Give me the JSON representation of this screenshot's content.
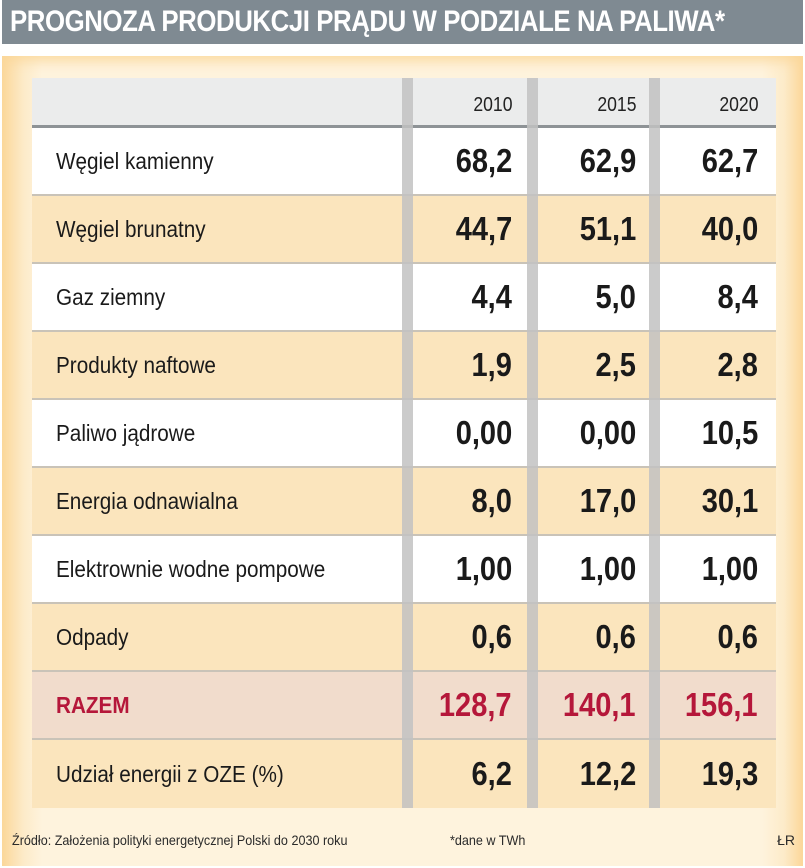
{
  "title": "PROGNOZA PRODUKCJI PRĄDU W PODZIALE NA PALIWA*",
  "colors": {
    "title_bg": "#7f8a92",
    "panel_bg": "#fef3dd",
    "row_beige": "#fbe5bd",
    "row_total": "#f1dccc",
    "total_text": "#b5173a"
  },
  "chart_data": {
    "type": "table",
    "title": "PROGNOZA PRODUKCJI PRĄDU W PODZIALE NA PALIWA*",
    "columns": [
      "",
      "2010",
      "2015",
      "2020"
    ],
    "rows": [
      {
        "label": "Węgiel kamienny",
        "values": [
          "68,2",
          "62,9",
          "62,7"
        ]
      },
      {
        "label": "Węgiel brunatny",
        "values": [
          "44,7",
          "51,1",
          "40,0"
        ]
      },
      {
        "label": "Gaz ziemny",
        "values": [
          "4,4",
          "5,0",
          "8,4"
        ]
      },
      {
        "label": "Produkty naftowe",
        "values": [
          "1,9",
          "2,5",
          "2,8"
        ]
      },
      {
        "label": "Paliwo jądrowe",
        "values": [
          "0,00",
          "0,00",
          "10,5"
        ]
      },
      {
        "label": "Energia odnawialna",
        "values": [
          "8,0",
          "17,0",
          "30,1"
        ]
      },
      {
        "label": "Elektrownie wodne pompowe",
        "values": [
          "1,00",
          "1,00",
          "1,00"
        ]
      },
      {
        "label": "Odpady",
        "values": [
          "0,6",
          "0,6",
          "0,6"
        ]
      },
      {
        "label": "RAZEM",
        "values": [
          "128,7",
          "140,1",
          "156,1"
        ]
      },
      {
        "label": "Udział energii z OZE (%)",
        "values": [
          "6,2",
          "12,2",
          "19,3"
        ]
      }
    ],
    "source": "Źródło: Założenia polityki energetycznej Polski do 2030 roku",
    "note": "*dane w TWh",
    "author": "ŁR"
  }
}
